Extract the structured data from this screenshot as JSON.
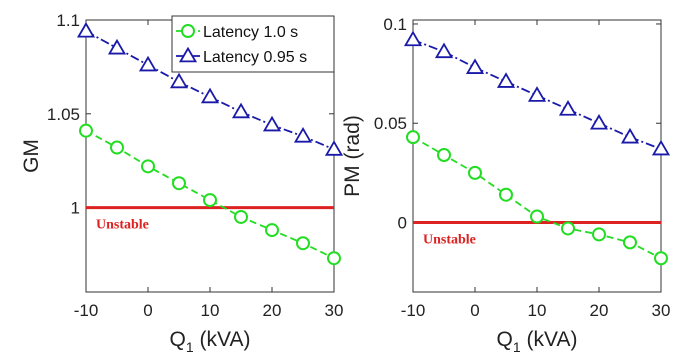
{
  "chart_data": [
    {
      "type": "line",
      "ylabel": "GM",
      "xlabel": "Q",
      "xlabel_sub": "1",
      "xlabel_units": " (kVA)",
      "xlim": [
        -10,
        30
      ],
      "ylim": [
        0.955,
        1.1
      ],
      "xticks": [
        -10,
        0,
        10,
        20,
        30
      ],
      "xtick_labels": [
        "-10",
        "0",
        "10",
        "20",
        "30"
      ],
      "yticks": [
        1,
        1.05,
        1.1
      ],
      "ytick_labels": [
        "1",
        "1.05",
        "1.1"
      ],
      "legend": {
        "placement": "top-right",
        "entries": [
          "Latency 1.0 s",
          "Latency 0.95 s"
        ]
      },
      "x": [
        -10,
        -5,
        0,
        5,
        10,
        15,
        20,
        25,
        30
      ],
      "series": [
        {
          "name": "Latency 1.0 s",
          "color": "#22dd22",
          "marker": "circle",
          "linestyle": "dashed",
          "values": [
            1.041,
            1.032,
            1.022,
            1.013,
            1.004,
            0.995,
            0.988,
            0.981,
            0.973
          ]
        },
        {
          "name": "Latency 0.95 s",
          "color": "#1a1aaa",
          "marker": "triangle",
          "linestyle": "dash-dot",
          "values": [
            1.094,
            1.085,
            1.076,
            1.067,
            1.059,
            1.051,
            1.044,
            1.038,
            1.031
          ]
        }
      ],
      "threshold": {
        "value": 1,
        "color": "#dd2222",
        "label": "Unstable"
      }
    },
    {
      "type": "line",
      "ylabel": "PM (rad)",
      "xlabel": "Q",
      "xlabel_sub": "1",
      "xlabel_units": " (kVA)",
      "xlim": [
        -10,
        30
      ],
      "ylim": [
        -0.035,
        0.102
      ],
      "xticks": [
        -10,
        0,
        10,
        20,
        30
      ],
      "xtick_labels": [
        "-10",
        "0",
        "10",
        "20",
        "30"
      ],
      "yticks": [
        0,
        0.05,
        0.1
      ],
      "ytick_labels": [
        "0",
        "0.05",
        "0.1"
      ],
      "legend": null,
      "x": [
        -10,
        -5,
        0,
        5,
        10,
        15,
        20,
        25,
        30
      ],
      "series": [
        {
          "name": "Latency 1.0 s",
          "color": "#22dd22",
          "marker": "circle",
          "linestyle": "dashed",
          "values": [
            0.043,
            0.034,
            0.025,
            0.014,
            0.003,
            -0.003,
            -0.006,
            -0.01,
            -0.018
          ]
        },
        {
          "name": "Latency 0.95 s",
          "color": "#1a1aaa",
          "marker": "triangle",
          "linestyle": "dash-dot",
          "values": [
            0.092,
            0.086,
            0.078,
            0.071,
            0.064,
            0.057,
            0.05,
            0.043,
            0.037
          ]
        }
      ],
      "threshold": {
        "value": 0,
        "color": "#dd2222",
        "label": "Unstable"
      }
    }
  ]
}
